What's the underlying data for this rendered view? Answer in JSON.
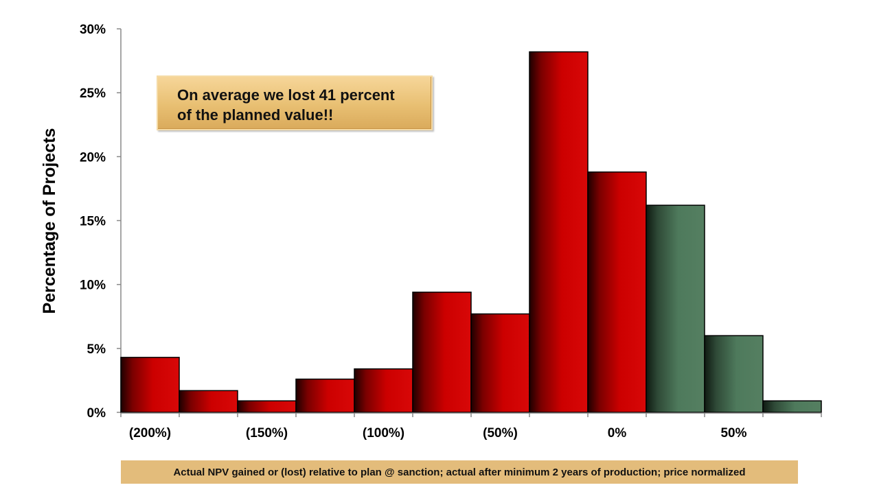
{
  "callout": {
    "line1": "On average we lost 41 percent",
    "line2": "of the planned value!!"
  },
  "footnote": "Actual NPV gained or (lost) relative to plan @ sanction; actual after minimum 2 years of production; price normalized",
  "chart_data": {
    "type": "bar",
    "title": "",
    "ylabel": "Percentage of Projects",
    "xlabel": "Actual NPV gained or (lost) relative to plan @ sanction; actual after minimum 2 years of production; price normalized",
    "ylim": [
      0,
      30
    ],
    "yticks": [
      "0%",
      "5%",
      "10%",
      "15%",
      "20%",
      "25%",
      "30%"
    ],
    "xticks": [
      "(200%)",
      "(150%)",
      "(100%)",
      "(50%)",
      "0%",
      "50%"
    ],
    "grid": false,
    "colors": {
      "loss": "#cc0000",
      "gain": "#4e7a5c"
    },
    "bins": [
      {
        "range": "(225%) to (200%)",
        "value": 4.3,
        "group": "loss"
      },
      {
        "range": "(200%) to (175%)",
        "value": 1.7,
        "group": "loss"
      },
      {
        "range": "(175%) to (150%)",
        "value": 0.9,
        "group": "loss"
      },
      {
        "range": "(150%) to (125%)",
        "value": 2.6,
        "group": "loss"
      },
      {
        "range": "(125%) to (100%)",
        "value": 3.4,
        "group": "loss"
      },
      {
        "range": "(100%) to (75%)",
        "value": 9.4,
        "group": "loss"
      },
      {
        "range": "(75%) to (50%)",
        "value": 7.7,
        "group": "loss"
      },
      {
        "range": "(50%) to (25%)",
        "value": 28.2,
        "group": "loss"
      },
      {
        "range": "(25%) to 0%",
        "value": 18.8,
        "group": "loss"
      },
      {
        "range": "0% to 25%",
        "value": 16.2,
        "group": "gain"
      },
      {
        "range": "25% to 50%",
        "value": 6.0,
        "group": "gain"
      },
      {
        "range": "50% to 75%",
        "value": 0.9,
        "group": "gain"
      }
    ]
  }
}
